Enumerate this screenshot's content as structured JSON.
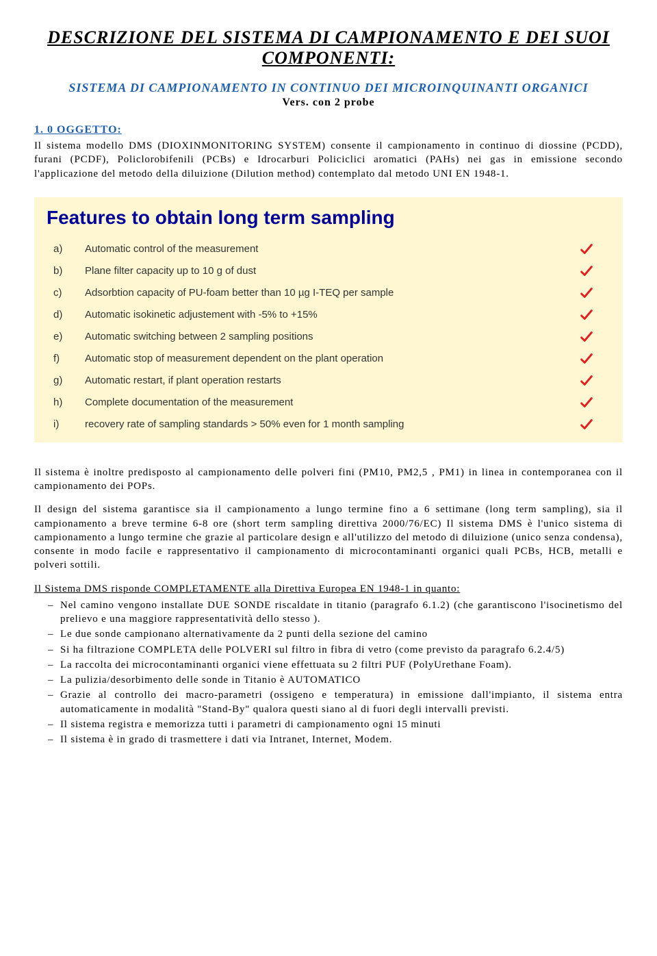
{
  "title": "DESCRIZIONE DEL SISTEMA DI CAMPIONAMENTO E DEI SUOI COMPONENTI:",
  "subtitle": "SISTEMA DI CAMPIONAMENTO IN CONTINUO DEI MICROINQUINANTI ORGANICI",
  "version": "Vers. con 2 probe",
  "section1_head": "1. 0 OGGETTO:",
  "section1_para": "Il sistema modello DMS (DIOXINMONITORING SYSTEM) consente il campionamento in continuo di diossine (PCDD), furani (PCDF), Policlorobifenili (PCBs) e Idrocarburi Policiclici aromatici (PAHs) nei gas in emissione secondo l'applicazione del metodo della diluizione (Dilution method) contemplato dal metodo UNI EN 1948-1.",
  "features": {
    "title": "Features to obtain long term sampling",
    "title_color": "#000099",
    "title_fontsize": 28,
    "background_color": "#fff7d2",
    "text_color": "#333333",
    "text_fontsize": 15,
    "check_color": "#e02020",
    "rows": [
      {
        "letter": "a)",
        "text": "Automatic control of the measurement"
      },
      {
        "letter": "b)",
        "text": "Plane filter capacity up to 10 g of dust"
      },
      {
        "letter": "c)",
        "text": "Adsorbtion capacity of PU-foam better than 10 µg I-TEQ per sample"
      },
      {
        "letter": "d)",
        "text": "Automatic isokinetic adjustement with -5% to +15%"
      },
      {
        "letter": "e)",
        "text": "Automatic switching between 2 sampling positions"
      },
      {
        "letter": "f)",
        "text": "Automatic stop of measurement dependent on the plant operation"
      },
      {
        "letter": "g)",
        "text": "Automatic restart, if plant operation restarts"
      },
      {
        "letter": "h)",
        "text": "Complete documentation of the measurement"
      },
      {
        "letter": "i)",
        "text": "recovery rate of sampling standards > 50% even for 1 month sampling"
      }
    ]
  },
  "para2": "Il sistema è inoltre predisposto al campionamento delle polveri fini (PM10, PM2,5 , PM1) in linea in contemporanea con il campionamento dei POPs.",
  "para3": "Il design del sistema garantisce sia il campionamento a lungo termine fino a 6 settimane (long term sampling), sia il campionamento a breve termine 6-8 ore (short term sampling direttiva 2000/76/EC) Il sistema DMS è l'unico sistema di campionamento a lungo termine che grazie al particolare design e all'utilizzo del metodo di diluizione (unico senza condensa), consente in modo facile e rappresentativo il campionamento di microcontaminanti organici quali PCBs, HCB, metalli e polveri sottili.",
  "directive_head": "Il Sistema DMS risponde COMPLETAMENTE alla Direttiva Europea EN 1948-1 in quanto:",
  "bullets": [
    "Nel camino vengono installate DUE SONDE riscaldate in titanio (paragrafo 6.1.2) (che garantiscono l'isocinetismo del prelievo e una maggiore rappresentatività dello stesso ).",
    "Le due sonde campionano alternativamente da 2 punti della sezione del camino",
    "Si ha filtrazione COMPLETA delle POLVERI sul filtro in fibra di vetro (come previsto da paragrafo 6.2.4/5)",
    "La raccolta dei microcontaminanti organici viene effettuata su 2 filtri PUF (PolyUrethane Foam).",
    "La pulizia/desorbimento delle sonde in Titanio è AUTOMATICO",
    "Grazie al controllo dei macro-parametri (ossigeno e temperatura) in emissione dall'impianto, il sistema entra automaticamente in modalità \"Stand-By\" qualora questi siano al di fuori degli intervalli previsti.",
    "Il sistema registra e memorizza tutti i parametri di campionamento ogni 15 minuti",
    "Il sistema è in grado di trasmettere i dati via Intranet, Internet, Modem."
  ]
}
